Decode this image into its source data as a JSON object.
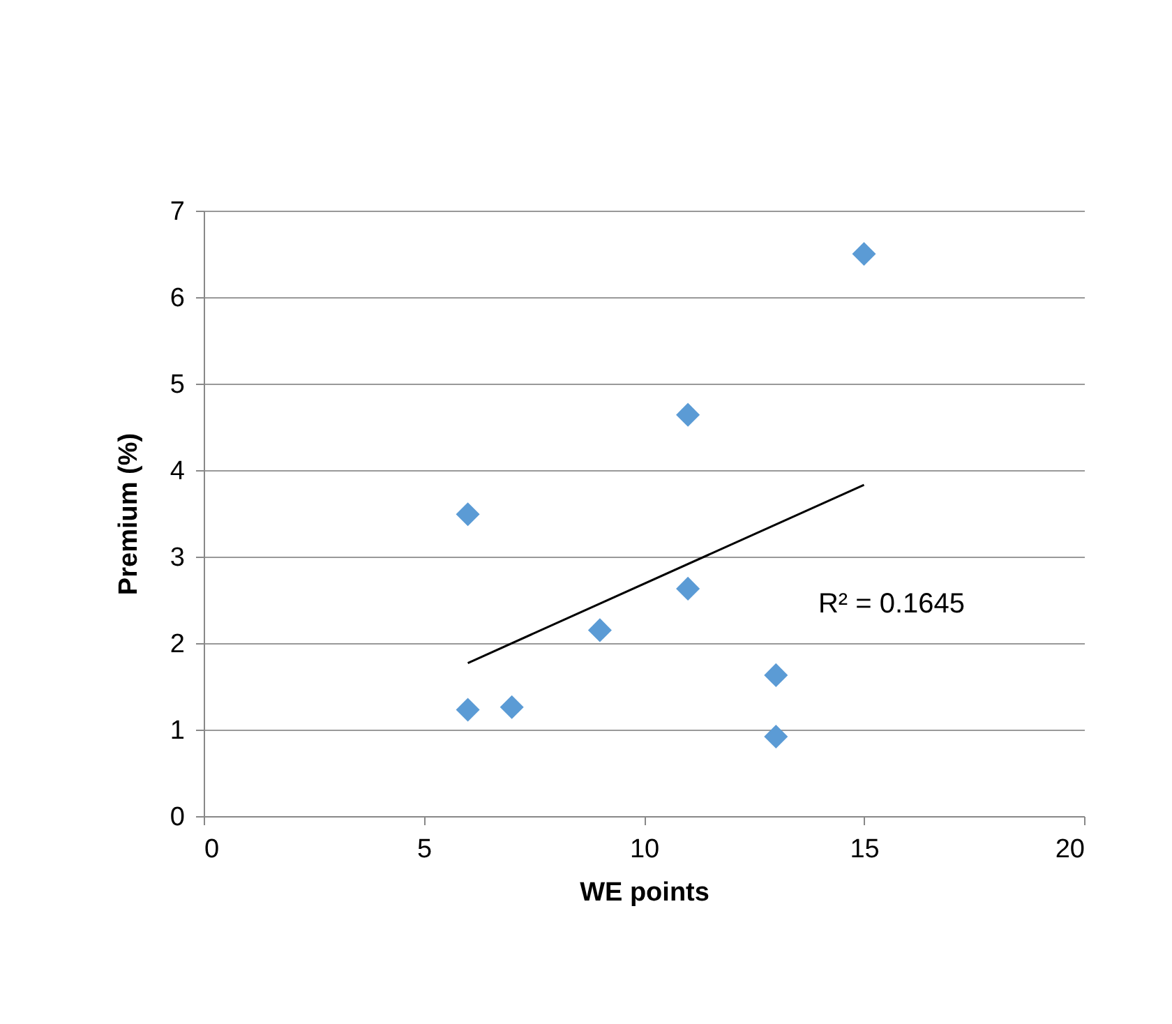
{
  "chart_data": {
    "type": "scatter",
    "xlabel": "WE points",
    "ylabel": "Premium (%)",
    "xlim": [
      0,
      20
    ],
    "xticks": [
      0,
      5,
      10,
      15,
      20
    ],
    "ylim": [
      0,
      7
    ],
    "yticks": [
      0,
      1,
      2,
      3,
      4,
      5,
      6,
      7
    ],
    "grid": "y",
    "series": [
      {
        "marker": "diamond",
        "color": "#5b9bd5",
        "x": [
          6,
          6,
          7,
          9,
          11,
          11,
          13,
          13,
          15
        ],
        "values": [
          3.49,
          1.23,
          1.26,
          2.15,
          4.64,
          2.63,
          1.63,
          0.92,
          6.5
        ]
      },
      {
        "type": "line",
        "marker": "none",
        "color": "#000000",
        "x": [
          6,
          15
        ],
        "values": [
          1.77,
          3.83
        ]
      }
    ],
    "annotations": [
      "R² = 0.1645"
    ]
  }
}
